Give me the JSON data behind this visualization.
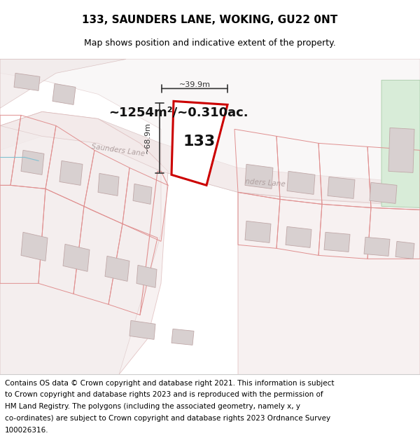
{
  "title": "133, SAUNDERS LANE, WOKING, GU22 0NT",
  "subtitle": "Map shows position and indicative extent of the property.",
  "area_label": "~1254m²/~0.310ac.",
  "width_label": "~39.9m",
  "height_label": "~68.9m",
  "plot_number": "133",
  "road_label": "Saunders Lane",
  "road_label2": "nders Lane",
  "background_color": "#ffffff",
  "dim_color": "#333333",
  "title_fontsize": 11,
  "subtitle_fontsize": 9,
  "footer_fontsize": 7.5,
  "footer_lines": [
    "Contains OS data © Crown copyright and database right 2021. This information is subject",
    "to Crown copyright and database rights 2023 and is reproduced with the permission of",
    "HM Land Registry. The polygons (including the associated geometry, namely x, y",
    "co-ordinates) are subject to Crown copyright and database rights 2023 Ordnance Survey",
    "100026316."
  ]
}
